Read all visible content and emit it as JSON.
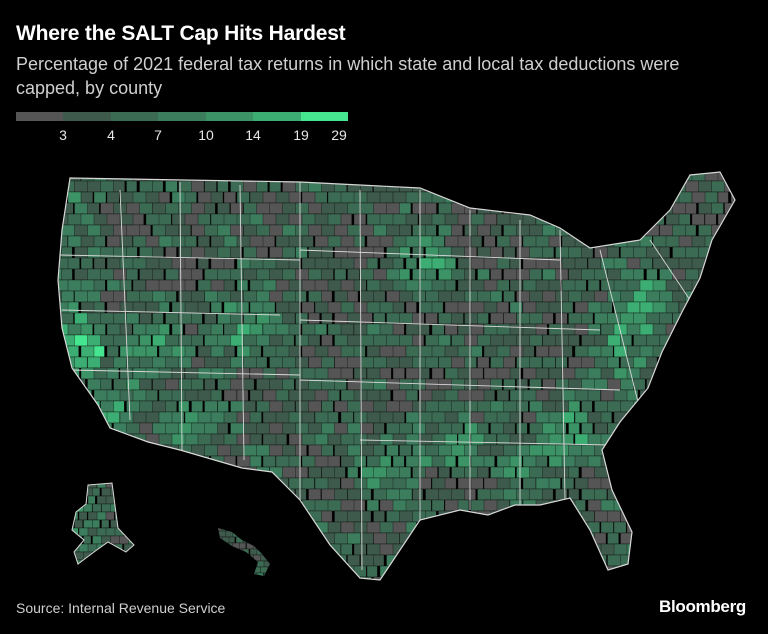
{
  "title": "Where the SALT Cap Hits Hardest",
  "subtitle": "Percentage of 2021 federal tax returns in which state and local tax deductions were capped, by county",
  "legend": {
    "thresholds": [
      "3",
      "4",
      "7",
      "10",
      "14",
      "19",
      "29"
    ],
    "colors": [
      "#555555",
      "#3e5a4c",
      "#3c6b54",
      "#3b7d5c",
      "#3c9366",
      "#3dae73",
      "#46e690"
    ]
  },
  "map": {
    "regions": [
      "contiguous-us",
      "alaska",
      "hawaii"
    ],
    "background_color": "#000000",
    "border_color": "#d8d8d8"
  },
  "source": "Source: Internal Revenue Service",
  "brand": "Bloomberg"
}
